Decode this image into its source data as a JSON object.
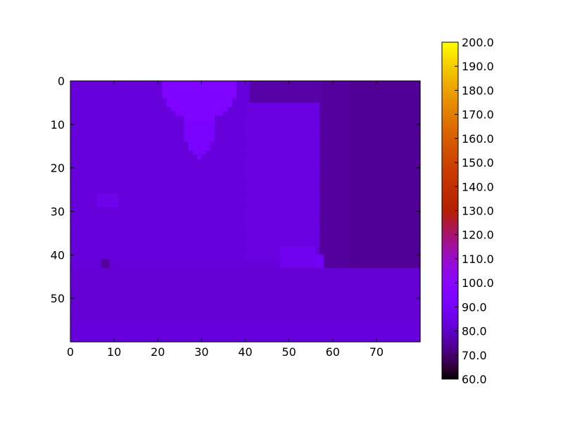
{
  "chart_data": {
    "type": "heatmap",
    "title": "",
    "xlabel": "",
    "ylabel": "",
    "grid": false,
    "x_range": [
      0,
      80
    ],
    "y_range": [
      0,
      60
    ],
    "y_inverted": true,
    "x_ticks": [
      0,
      10,
      20,
      30,
      40,
      50,
      60,
      70
    ],
    "x_tick_labels": [
      "0",
      "10",
      "20",
      "30",
      "40",
      "50",
      "60",
      "70"
    ],
    "y_ticks": [
      0,
      10,
      20,
      30,
      40,
      50
    ],
    "y_tick_labels": [
      "0",
      "10",
      "20",
      "30",
      "40",
      "50"
    ],
    "colormap": "gnuplot",
    "colorbar": {
      "min": 60,
      "max": 200,
      "ticks": [
        60,
        70,
        80,
        90,
        100,
        110,
        120,
        130,
        140,
        150,
        160,
        170,
        180,
        190,
        200
      ],
      "tick_labels": [
        "60.0",
        "70.0",
        "80.0",
        "90.0",
        "100.0",
        "110.0",
        "120.0",
        "130.0",
        "140.0",
        "150.0",
        "160.0",
        "170.0",
        "180.0",
        "190.0",
        "200.0"
      ]
    },
    "image": {
      "columns": 80,
      "rows": 60,
      "value_range_estimate": [
        72,
        95
      ],
      "description_values": {
        "background_value": 83,
        "dark_right_region_value": 75,
        "bright_neck_region_value": 94,
        "bright_hand_region_value": 88
      }
    }
  }
}
